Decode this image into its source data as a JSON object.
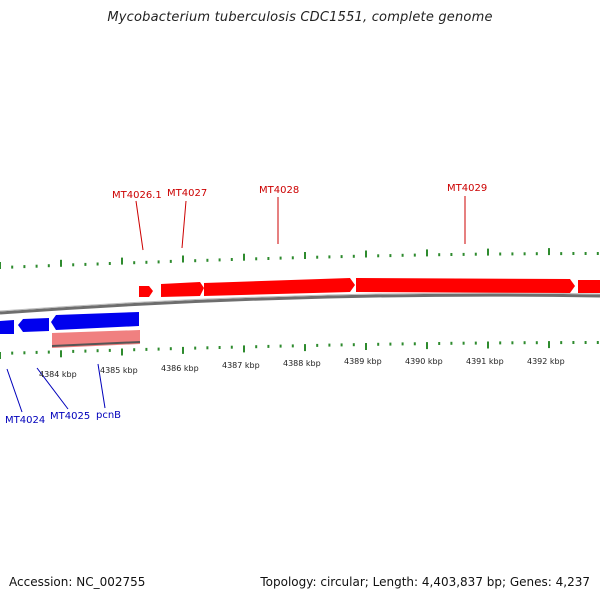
{
  "title": "Mycobacterium tuberculosis CDC1551, complete genome",
  "footer": {
    "accession": "Accession: NC_002755",
    "summary": "Topology: circular; Length: 4,403,837 bp; Genes: 4,237"
  },
  "colors": {
    "forward_strand": "#ff0000",
    "reverse_strand": "#0000ee",
    "pseudo_gene": "#f08080",
    "gc_ticks": "#2e8b2e",
    "backbone": "#888888",
    "label_forward": "#cc0000",
    "label_reverse": "#0000bb"
  },
  "kbp_labels": [
    "4384 kbp",
    "4385 kbp",
    "4386 kbp",
    "4387 kbp",
    "4388 kbp",
    "4389 kbp",
    "4390 kbp",
    "4391 kbp",
    "4392 kbp"
  ],
  "genes_forward": [
    {
      "label": "MT4026.1"
    },
    {
      "label": "MT4027"
    },
    {
      "label": "MT4028"
    },
    {
      "label": "MT4029"
    }
  ],
  "genes_reverse": [
    {
      "label": "MT4024"
    },
    {
      "label": "MT4025"
    },
    {
      "label": "pcnB"
    }
  ]
}
